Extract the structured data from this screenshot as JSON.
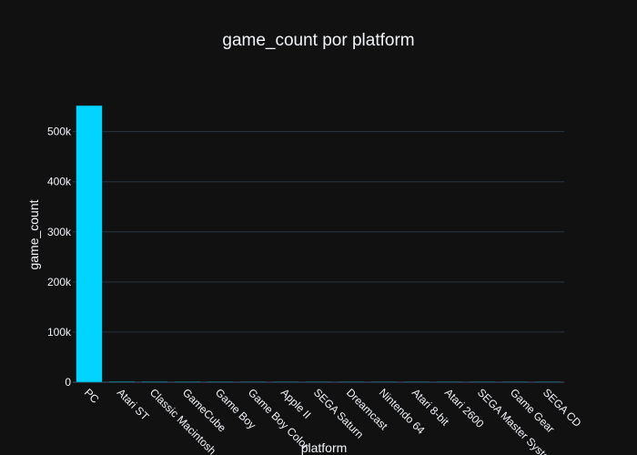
{
  "chart_data": {
    "type": "bar",
    "title": "game_count por platform",
    "xlabel": "platform",
    "ylabel": "game_count",
    "categories": [
      "PC",
      "Atari ST",
      "Classic Macintosh",
      "GameCube",
      "Game Boy",
      "Game Boy Color",
      "Apple II",
      "SEGA Saturn",
      "Dreamcast",
      "Nintendo 64",
      "Atari 8-bit",
      "Atari 2600",
      "SEGA Master System",
      "Game Gear",
      "SEGA CD"
    ],
    "values": [
      552000,
      1500,
      1400,
      1300,
      1200,
      1100,
      1000,
      950,
      900,
      850,
      800,
      750,
      700,
      650,
      600
    ],
    "ylim": [
      0,
      552000
    ],
    "yticks": [
      0,
      100000,
      200000,
      300000,
      400000,
      500000
    ],
    "ytick_labels": [
      "0",
      "100k",
      "200k",
      "300k",
      "400k",
      "500k"
    ],
    "grid": true,
    "colors": {
      "bar": "#00d4ff",
      "background": "#111111",
      "grid": "#283442",
      "text": "#f2f5fa"
    }
  }
}
